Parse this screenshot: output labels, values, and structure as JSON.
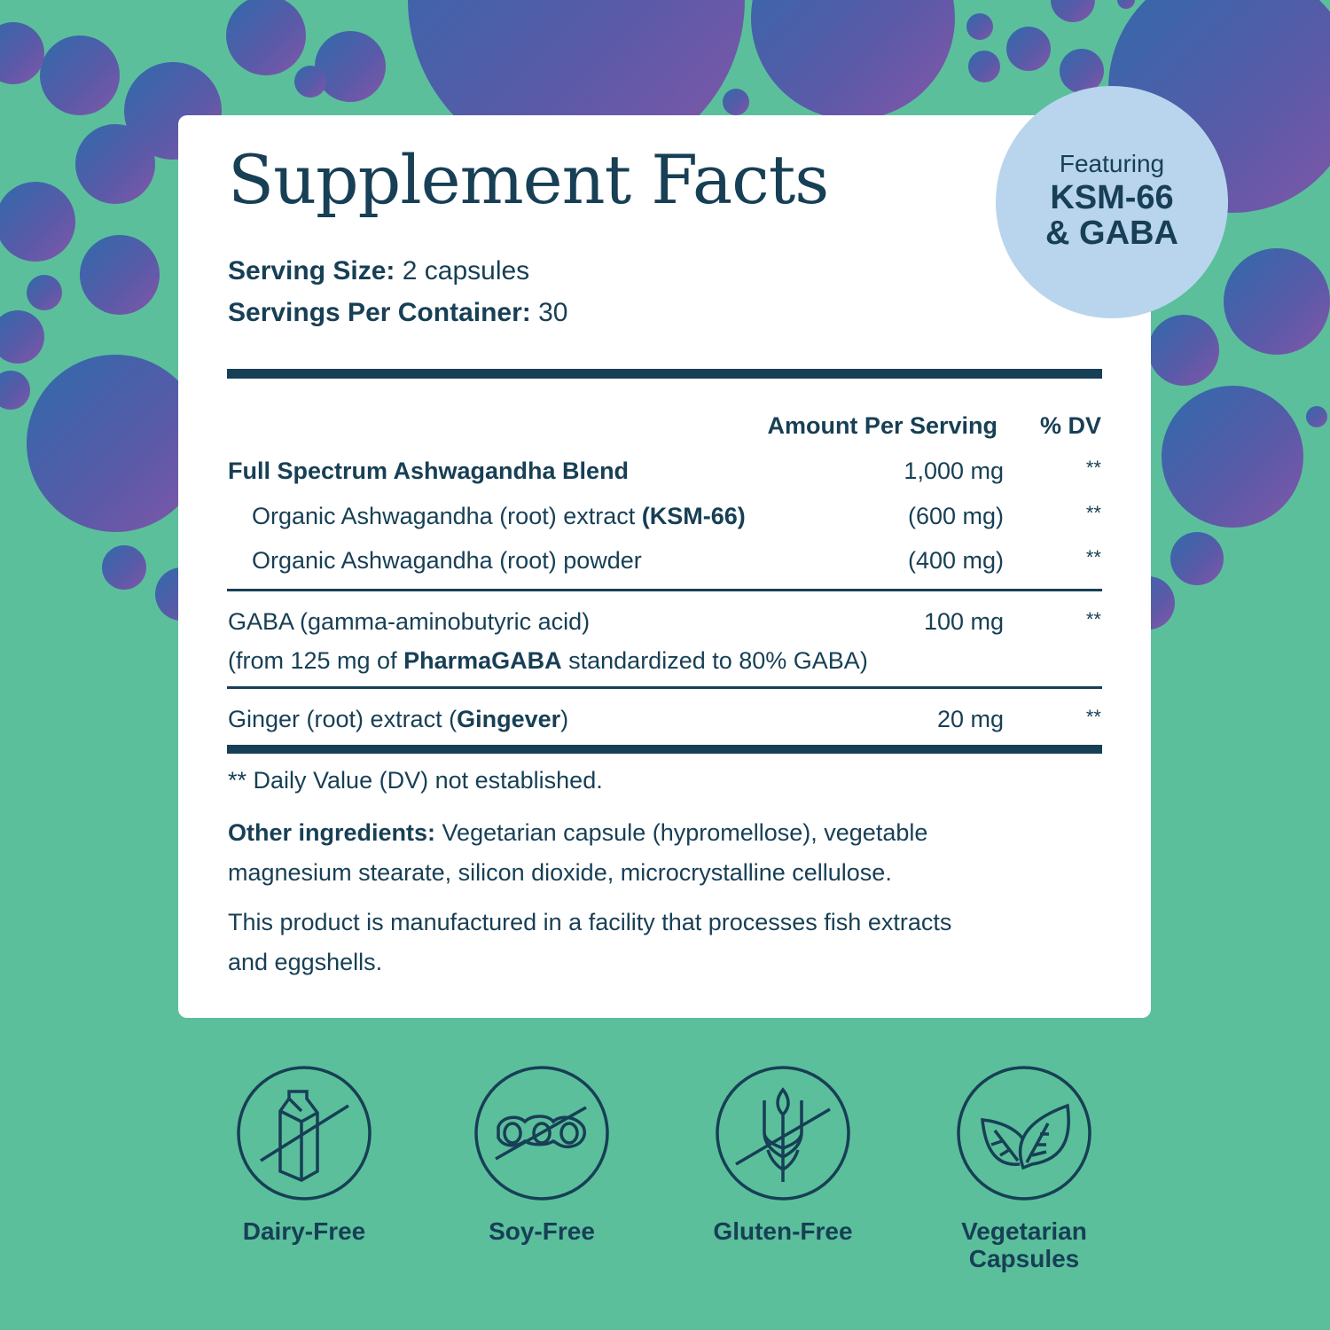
{
  "colors": {
    "background": "#5bbf9c",
    "text": "#173f55",
    "badge": "#b9d5ee",
    "bubble_blue": "#3366a8",
    "bubble_purple": "#7a58a8"
  },
  "title": "Supplement Facts",
  "badge": {
    "line1": "Featuring",
    "line2": "KSM-66",
    "line3": "& GABA"
  },
  "serving": {
    "size_label": "Serving Size:",
    "size_value": " 2 capsules",
    "per_container_label": "Servings Per Container:",
    "per_container_value": " 30"
  },
  "header": {
    "amount": "Amount Per Serving",
    "dv": "% DV"
  },
  "rows": [
    {
      "name": "Full Spectrum Ashwagandha Blend",
      "amount": "1,000 mg",
      "dv": "**"
    },
    {
      "name": "Organic Ashwagandha (root) extract ",
      "name_bold": "(KSM-66)",
      "amount": "(600 mg)",
      "dv": "**"
    },
    {
      "name": "Organic Ashwagandha (root) powder",
      "amount": "(400 mg)",
      "dv": "**"
    },
    {
      "name": "GABA (gamma-aminobutyric acid)",
      "sub_pre": "(from 125 mg of ",
      "sub_bold": "PharmaGABA",
      "sub_post": " standardized to 80% GABA)",
      "amount": "100 mg",
      "dv": "**"
    },
    {
      "name": "Ginger (root) extract (",
      "name_bold": "Gingever",
      "name_post": ")",
      "amount": "20 mg",
      "dv": "**"
    }
  ],
  "footnote": "** Daily Value (DV) not established.",
  "other": {
    "label": "Other ingredients:",
    "line1": " Vegetarian capsule (hypromellose),  vegetable",
    "line2": "magnesium stearate, silicon dioxide, microcrystalline cellulose."
  },
  "facility": {
    "line1": "This product is manufactured in a facility that processes fish extracts",
    "line2": "and eggshells."
  },
  "badges": [
    {
      "icon": "milk-carton-crossed-icon",
      "label": "Dairy-Free"
    },
    {
      "icon": "soybean-crossed-icon",
      "label": "Soy-Free"
    },
    {
      "icon": "wheat-crossed-icon",
      "label": "Gluten-Free"
    },
    {
      "icon": "leaves-icon",
      "label": "Vegetarian",
      "label2": "Capsules"
    }
  ]
}
